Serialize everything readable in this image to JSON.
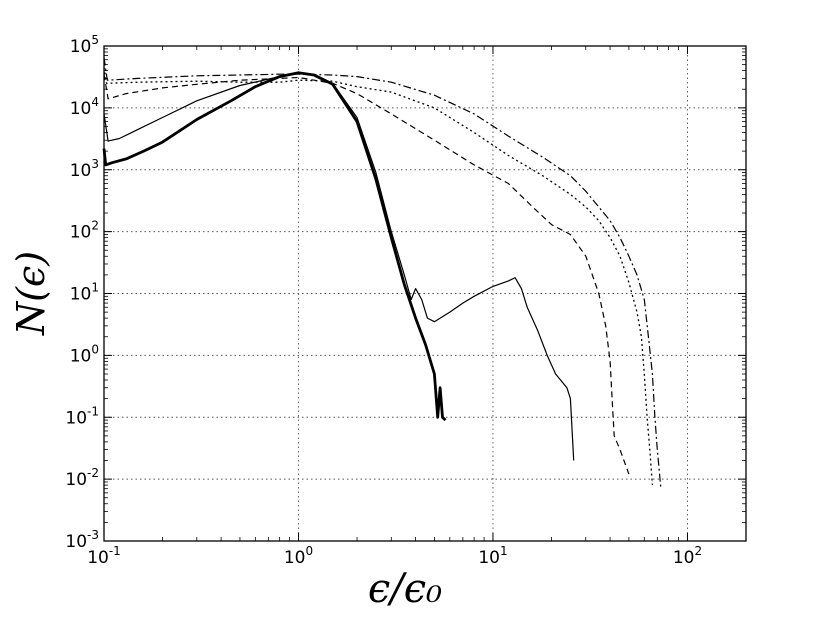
{
  "chart_data": {
    "type": "line",
    "xlabel": "ϵ/ϵ₀",
    "ylabel": "N(ϵ)",
    "xscale": "log",
    "yscale": "log",
    "xlim": [
      0.1,
      200
    ],
    "ylim": [
      0.001,
      100000
    ],
    "grid": true,
    "legend": "none",
    "x_ticks": [
      {
        "base": "10",
        "exp": "-1"
      },
      {
        "base": "10",
        "exp": "0"
      },
      {
        "base": "10",
        "exp": "1"
      },
      {
        "base": "10",
        "exp": "2"
      }
    ],
    "y_ticks": [
      {
        "base": "10",
        "exp": "-3"
      },
      {
        "base": "10",
        "exp": "-2"
      },
      {
        "base": "10",
        "exp": "-1"
      },
      {
        "base": "10",
        "exp": "0"
      },
      {
        "base": "10",
        "exp": "1"
      },
      {
        "base": "10",
        "exp": "2"
      },
      {
        "base": "10",
        "exp": "3"
      },
      {
        "base": "10",
        "exp": "4"
      },
      {
        "base": "10",
        "exp": "5"
      }
    ],
    "series": [
      {
        "style": "thick-solid",
        "points": [
          [
            0.1,
            2200
          ],
          [
            0.102,
            1200
          ],
          [
            0.11,
            1300
          ],
          [
            0.13,
            1500
          ],
          [
            0.16,
            2000
          ],
          [
            0.2,
            2800
          ],
          [
            0.3,
            6500
          ],
          [
            0.45,
            13000
          ],
          [
            0.6,
            22000
          ],
          [
            0.8,
            32000
          ],
          [
            1.0,
            37000
          ],
          [
            1.2,
            34000
          ],
          [
            1.5,
            24000
          ],
          [
            2.0,
            6000
          ],
          [
            2.5,
            700
          ],
          [
            3.0,
            80
          ],
          [
            3.5,
            14
          ],
          [
            4.0,
            4
          ],
          [
            4.5,
            1.5
          ],
          [
            5.0,
            0.5
          ],
          [
            5.2,
            0.1
          ],
          [
            5.35,
            0.3
          ],
          [
            5.5,
            0.1
          ],
          [
            5.7,
            0.09
          ]
        ]
      },
      {
        "style": "thin-solid",
        "points": [
          [
            0.1,
            8000
          ],
          [
            0.105,
            2900
          ],
          [
            0.12,
            3200
          ],
          [
            0.15,
            4500
          ],
          [
            0.2,
            7000
          ],
          [
            0.3,
            13000
          ],
          [
            0.5,
            23000
          ],
          [
            0.8,
            32000
          ],
          [
            1.0,
            36000
          ],
          [
            1.2,
            35000
          ],
          [
            1.5,
            25000
          ],
          [
            2.0,
            7000
          ],
          [
            2.5,
            900
          ],
          [
            3.0,
            100
          ],
          [
            3.5,
            20
          ],
          [
            3.8,
            8
          ],
          [
            4.0,
            12
          ],
          [
            4.3,
            8
          ],
          [
            4.6,
            4
          ],
          [
            5.0,
            3.5
          ],
          [
            6.0,
            5
          ],
          [
            7.0,
            7
          ],
          [
            8.0,
            9
          ],
          [
            10.0,
            13
          ],
          [
            12.0,
            16
          ],
          [
            13.0,
            18
          ],
          [
            14.0,
            12
          ],
          [
            15.0,
            6
          ],
          [
            17.0,
            2.5
          ],
          [
            19.0,
            1
          ],
          [
            21.0,
            0.5
          ],
          [
            24.0,
            0.3
          ],
          [
            25.0,
            0.2
          ],
          [
            26.0,
            0.02
          ]
        ]
      },
      {
        "style": "dashed",
        "points": [
          [
            0.1,
            35000
          ],
          [
            0.105,
            14000
          ],
          [
            0.13,
            17000
          ],
          [
            0.2,
            21000
          ],
          [
            0.3,
            24000
          ],
          [
            0.5,
            28000
          ],
          [
            0.8,
            30000
          ],
          [
            1.0,
            31000
          ],
          [
            1.5,
            25000
          ],
          [
            2.0,
            17000
          ],
          [
            3.0,
            8000
          ],
          [
            5.0,
            3000
          ],
          [
            8.0,
            1200
          ],
          [
            12.0,
            600
          ],
          [
            16.0,
            250
          ],
          [
            20.0,
            130
          ],
          [
            25.0,
            90
          ],
          [
            30.0,
            40
          ],
          [
            35.0,
            10
          ],
          [
            38.0,
            3
          ],
          [
            40.0,
            0.8
          ],
          [
            41.0,
            0.2
          ],
          [
            42.0,
            0.05
          ],
          [
            45.0,
            0.03
          ],
          [
            50.0,
            0.012
          ]
        ]
      },
      {
        "style": "dotted",
        "points": [
          [
            0.1,
            45000
          ],
          [
            0.103,
            25000
          ],
          [
            0.15,
            26000
          ],
          [
            0.3,
            27000
          ],
          [
            0.5,
            26000
          ],
          [
            0.8,
            26000
          ],
          [
            1.0,
            28000
          ],
          [
            1.5,
            27000
          ],
          [
            2.0,
            22000
          ],
          [
            3.0,
            18000
          ],
          [
            5.0,
            10000
          ],
          [
            8.0,
            4000
          ],
          [
            12.0,
            1700
          ],
          [
            18.0,
            800
          ],
          [
            25.0,
            400
          ],
          [
            30.0,
            250
          ],
          [
            35.0,
            150
          ],
          [
            40.0,
            80
          ],
          [
            45.0,
            40
          ],
          [
            50.0,
            15
          ],
          [
            55.0,
            5
          ],
          [
            58.0,
            2
          ],
          [
            60.0,
            0.5
          ],
          [
            62.0,
            0.1
          ],
          [
            64.0,
            0.03
          ],
          [
            66.0,
            0.008
          ]
        ]
      },
      {
        "style": "dash-dot",
        "points": [
          [
            0.1,
            65000
          ],
          [
            0.104,
            28000
          ],
          [
            0.15,
            30000
          ],
          [
            0.3,
            33000
          ],
          [
            0.5,
            34000
          ],
          [
            0.8,
            35000
          ],
          [
            1.0,
            35000
          ],
          [
            1.5,
            34000
          ],
          [
            2.0,
            32000
          ],
          [
            3.0,
            26000
          ],
          [
            5.0,
            16000
          ],
          [
            8.0,
            8000
          ],
          [
            12.0,
            3500
          ],
          [
            18.0,
            1600
          ],
          [
            25.0,
            800
          ],
          [
            30.0,
            450
          ],
          [
            35.0,
            250
          ],
          [
            40.0,
            150
          ],
          [
            45.0,
            80
          ],
          [
            50.0,
            40
          ],
          [
            55.0,
            20
          ],
          [
            60.0,
            8
          ],
          [
            63.0,
            2
          ],
          [
            66.0,
            0.5
          ],
          [
            68.0,
            0.1
          ],
          [
            70.0,
            0.03
          ],
          [
            73.0,
            0.007
          ]
        ]
      }
    ]
  }
}
